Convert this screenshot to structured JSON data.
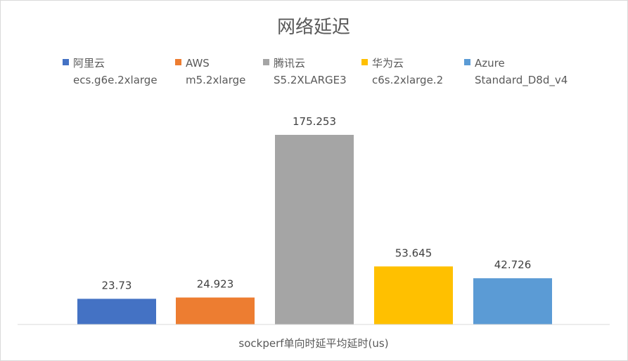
{
  "chart_data": {
    "type": "bar",
    "title": "网络延迟",
    "xlabel": "sockperf单向时延平均延时(us)",
    "ylabel": "",
    "ylim": [
      0,
      185
    ],
    "grid": false,
    "legend_position": "top",
    "categories": [
      "sockperf单向时延平均延时(us)"
    ],
    "series": [
      {
        "name": "阿里云 ecs.g6e.2xlarge",
        "name_lines": [
          "阿里云",
          "ecs.g6e.2xlarge"
        ],
        "value": 23.73,
        "label": "23.73",
        "color": "#4472c4"
      },
      {
        "name": "AWS m5.2xlarge",
        "name_lines": [
          "AWS",
          "m5.2xlarge"
        ],
        "value": 24.923,
        "label": "24.923",
        "color": "#ed7d31"
      },
      {
        "name": "腾讯云 S5.2XLARGE3",
        "name_lines": [
          "腾讯云",
          "S5.2XLARGE3"
        ],
        "value": 175.253,
        "label": "175.253",
        "color": "#a5a5a5"
      },
      {
        "name": "华为云 c6s.2xlarge.2",
        "name_lines": [
          "华为云",
          "c6s.2xlarge.2"
        ],
        "value": 53.645,
        "label": "53.645",
        "color": "#ffc000"
      },
      {
        "name": "Azure Standard_D8d_v4",
        "name_lines": [
          "Azure",
          "Standard_D8d_v4"
        ],
        "value": 42.726,
        "label": "42.726",
        "color": "#5b9bd5"
      }
    ]
  }
}
